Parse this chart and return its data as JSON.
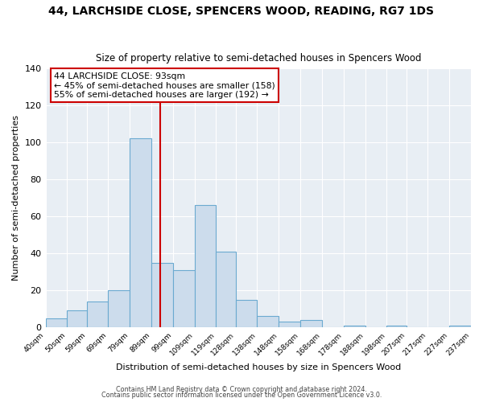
{
  "title": "44, LARCHSIDE CLOSE, SPENCERS WOOD, READING, RG7 1DS",
  "subtitle": "Size of property relative to semi-detached houses in Spencers Wood",
  "xlabel": "Distribution of semi-detached houses by size in Spencers Wood",
  "ylabel": "Number of semi-detached properties",
  "bar_edges": [
    40,
    50,
    59,
    69,
    79,
    89,
    99,
    109,
    119,
    128,
    138,
    148,
    158,
    168,
    178,
    188,
    198,
    207,
    217,
    227,
    237
  ],
  "bar_heights": [
    5,
    9,
    14,
    20,
    102,
    35,
    31,
    66,
    41,
    15,
    6,
    3,
    4,
    0,
    1,
    0,
    1,
    0,
    0,
    1
  ],
  "bar_color": "#ccdcec",
  "bar_edge_color": "#6baad0",
  "property_size": 93,
  "vline_color": "#cc0000",
  "annotation_title": "44 LARCHSIDE CLOSE: 93sqm",
  "annotation_line1": "← 45% of semi-detached houses are smaller (158)",
  "annotation_line2": "55% of semi-detached houses are larger (192) →",
  "annotation_box_color": "#ffffff",
  "annotation_box_edge": "#cc0000",
  "ylim": [
    0,
    140
  ],
  "xlim": [
    40,
    237
  ],
  "footer1": "Contains HM Land Registry data © Crown copyright and database right 2024.",
  "footer2": "Contains public sector information licensed under the Open Government Licence v3.0.",
  "tick_labels": [
    "40sqm",
    "50sqm",
    "59sqm",
    "69sqm",
    "79sqm",
    "89sqm",
    "99sqm",
    "109sqm",
    "119sqm",
    "128sqm",
    "138sqm",
    "148sqm",
    "158sqm",
    "168sqm",
    "178sqm",
    "188sqm",
    "198sqm",
    "207sqm",
    "217sqm",
    "227sqm",
    "237sqm"
  ],
  "bg_color": "#e8eef4",
  "fig_bg": "#ffffff",
  "grid_color": "#ffffff",
  "yticks": [
    0,
    20,
    40,
    60,
    80,
    100,
    120,
    140
  ]
}
